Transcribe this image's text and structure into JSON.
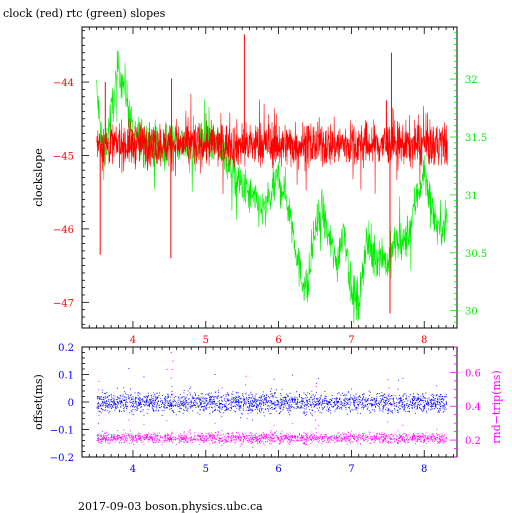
{
  "title": "clock (red) rtc (green) slopes",
  "footer": "2017-09-03 boson.physics.ubc.ca",
  "colors": {
    "clock": "#ff0000",
    "rtc": "#00ee00",
    "offset": "#0000ff",
    "rndtrip": "#ff00ff",
    "axis": "#000000"
  },
  "chart_data": [
    {
      "type": "line",
      "title": "clock (red) rtc (green) slopes",
      "xlabel": "",
      "xlim": [
        3.3,
        8.45
      ],
      "xticks": [
        4,
        5,
        6,
        7,
        8
      ],
      "xtick_labels": [
        "4",
        "5",
        "6",
        "7",
        "8"
      ],
      "left_axis": {
        "label": "clockslope",
        "ylim": [
          -47.35,
          -43.25
        ],
        "ticks": [
          -44,
          -45,
          -46,
          -47
        ],
        "tick_labels": [
          "−44",
          "−45",
          "−46",
          "−47"
        ]
      },
      "right_axis": {
        "label": "",
        "ylim": [
          29.85,
          32.45
        ],
        "ticks": [
          32,
          31.5,
          31,
          30.5,
          30
        ],
        "tick_labels": [
          "32",
          "31.5",
          "31",
          "30.5",
          "30"
        ]
      },
      "series": [
        {
          "name": "clock",
          "axis": "left",
          "x": [
            3.5,
            3.65,
            3.8,
            4.0,
            4.2,
            4.4,
            4.55,
            4.8,
            5.0,
            5.3,
            5.5,
            5.8,
            6.0,
            6.3,
            6.5,
            6.8,
            7.0,
            7.3,
            7.55,
            7.8,
            8.0,
            8.3
          ],
          "center": [
            -44.85,
            -44.85,
            -44.85,
            -44.85,
            -44.85,
            -44.85,
            -44.85,
            -44.85,
            -44.85,
            -44.85,
            -44.85,
            -44.85,
            -44.85,
            -44.85,
            -44.85,
            -44.85,
            -44.85,
            -44.85,
            -44.85,
            -44.85,
            -44.85,
            -44.85
          ],
          "spread": 0.3,
          "spikes": [
            {
              "x": 3.55,
              "value": -46.35
            },
            {
              "x": 3.62,
              "value": -44.0
            },
            {
              "x": 4.52,
              "value": -46.4
            },
            {
              "x": 4.53,
              "value": -43.95
            },
            {
              "x": 5.53,
              "value": -43.35
            },
            {
              "x": 7.53,
              "value": -47.15
            },
            {
              "x": 7.55,
              "value": -43.6
            },
            {
              "x": 7.48,
              "value": -44.25
            }
          ]
        },
        {
          "name": "rtc",
          "axis": "right",
          "x": [
            3.5,
            3.6,
            3.7,
            3.8,
            3.9,
            4.0,
            4.2,
            4.4,
            4.6,
            4.8,
            5.0,
            5.2,
            5.4,
            5.6,
            5.8,
            6.0,
            6.1,
            6.2,
            6.3,
            6.4,
            6.5,
            6.6,
            6.7,
            6.8,
            6.9,
            7.0,
            7.1,
            7.2,
            7.3,
            7.4,
            7.5,
            7.6,
            7.7,
            7.8,
            7.9,
            8.0,
            8.1,
            8.2,
            8.3
          ],
          "values": [
            31.9,
            31.3,
            31.7,
            32.1,
            31.9,
            31.5,
            31.5,
            31.4,
            31.5,
            31.35,
            31.5,
            31.4,
            31.15,
            31.0,
            30.85,
            31.15,
            31.0,
            30.7,
            30.3,
            30.2,
            30.7,
            30.85,
            30.6,
            30.4,
            30.75,
            30.15,
            30.05,
            30.6,
            30.45,
            30.5,
            30.4,
            30.6,
            30.55,
            30.7,
            31.0,
            31.2,
            30.9,
            30.7,
            30.8
          ],
          "spread": 0.18
        }
      ]
    },
    {
      "type": "scatter",
      "xlim": [
        3.3,
        8.45
      ],
      "xticks": [
        4,
        5,
        6,
        7,
        8
      ],
      "xtick_labels": [
        "4",
        "5",
        "6",
        "7",
        "8"
      ],
      "left_axis": {
        "label": "offset(ms)",
        "ylim": [
          -0.2,
          0.2
        ],
        "ticks": [
          0.2,
          0.1,
          0,
          -0.1,
          -0.2
        ],
        "tick_labels": [
          "0.2",
          "0.1",
          "0",
          "−0.1",
          "−0.2"
        ]
      },
      "right_axis": {
        "label": "rnd−trip(ms)",
        "ylim": [
          0.1,
          0.75
        ],
        "ticks": [
          0.6,
          0.4,
          0.2
        ],
        "tick_labels": [
          "0.6",
          "0.4",
          "0.2"
        ]
      },
      "series": [
        {
          "name": "offset",
          "axis": "left",
          "x_range": [
            3.5,
            8.3
          ],
          "center": 0.0,
          "spread": 0.035
        },
        {
          "name": "rnd-trip",
          "axis": "right",
          "x_range": [
            3.5,
            8.3
          ],
          "center": 0.215,
          "spread": 0.03,
          "outliers": [
            {
              "x": 3.52,
              "value": 0.55
            },
            {
              "x": 4.53,
              "value": 0.72
            },
            {
              "x": 5.55,
              "value": 0.58
            },
            {
              "x": 7.5,
              "value": 0.56
            },
            {
              "x": 6.5,
              "value": 0.52
            }
          ]
        }
      ]
    }
  ]
}
